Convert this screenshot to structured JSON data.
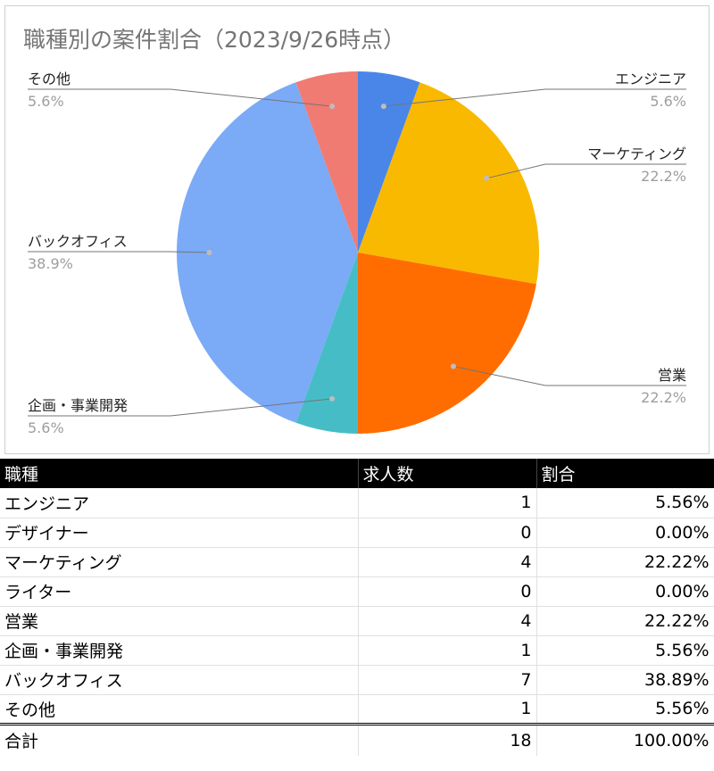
{
  "chart_data": {
    "type": "pie",
    "title": "職種別の案件割合（2023/9/26時点）",
    "slices": [
      {
        "label": "エンジニア",
        "value": 1,
        "percent_label": "5.6%",
        "color": "#4a86e8"
      },
      {
        "label": "マーケティング",
        "value": 4,
        "percent_label": "22.2%",
        "color": "#f9b900"
      },
      {
        "label": "営業",
        "value": 4,
        "percent_label": "22.2%",
        "color": "#ff6d00"
      },
      {
        "label": "企画・事業開発",
        "value": 1,
        "percent_label": "5.6%",
        "color": "#46bdc6"
      },
      {
        "label": "バックオフィス",
        "value": 7,
        "percent_label": "38.9%",
        "color": "#7baaf7"
      },
      {
        "label": "その他",
        "value": 1,
        "percent_label": "5.6%",
        "color": "#f07b72"
      }
    ]
  },
  "table": {
    "headers": [
      "職種",
      "求人数",
      "割合"
    ],
    "rows": [
      [
        "エンジニア",
        "1",
        "5.56%"
      ],
      [
        "デザイナー",
        "0",
        "0.00%"
      ],
      [
        "マーケティング",
        "4",
        "22.22%"
      ],
      [
        "ライター",
        "0",
        "0.00%"
      ],
      [
        "営業",
        "4",
        "22.22%"
      ],
      [
        "企画・事業開発",
        "1",
        "5.56%"
      ],
      [
        "バックオフィス",
        "7",
        "38.89%"
      ],
      [
        "その他",
        "1",
        "5.56%"
      ]
    ],
    "total": [
      "合計",
      "18",
      "100.00%"
    ]
  }
}
